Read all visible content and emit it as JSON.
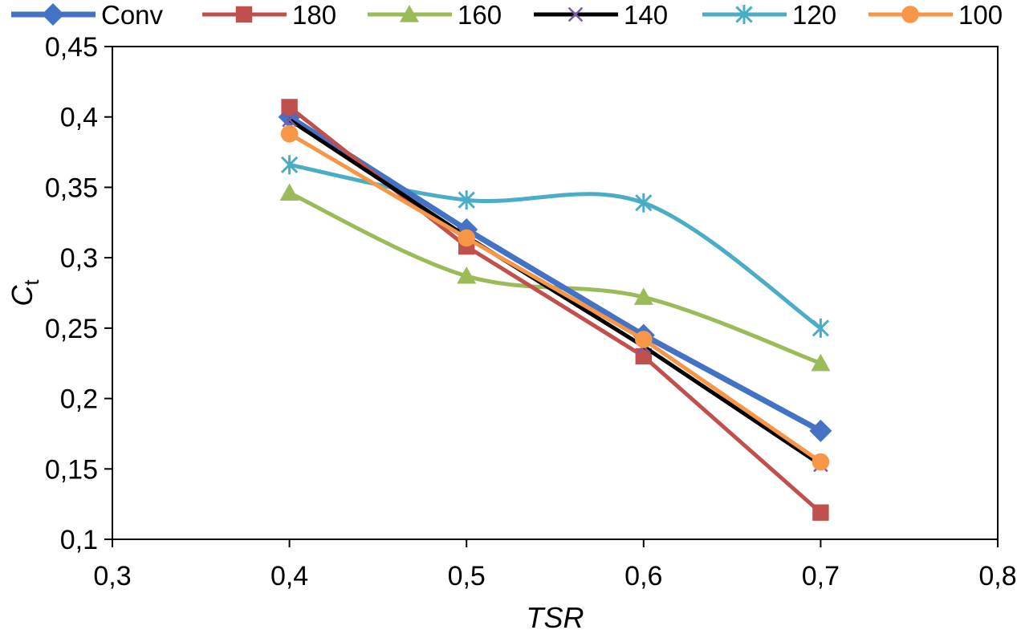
{
  "chart_data": {
    "type": "line",
    "title": "",
    "xlabel": "TSR",
    "ylabel": {
      "main": "C",
      "sub": "t"
    },
    "xlim": [
      0.3,
      0.8
    ],
    "ylim": [
      0.1,
      0.45
    ],
    "xticks": [
      {
        "value": 0.3,
        "label": "0,3"
      },
      {
        "value": 0.4,
        "label": "0,4"
      },
      {
        "value": 0.5,
        "label": "0,5"
      },
      {
        "value": 0.6,
        "label": "0,6"
      },
      {
        "value": 0.7,
        "label": "0,7"
      },
      {
        "value": 0.8,
        "label": "0,8"
      }
    ],
    "yticks": [
      {
        "value": 0.1,
        "label": "0,1"
      },
      {
        "value": 0.15,
        "label": "0,15"
      },
      {
        "value": 0.2,
        "label": "0,2"
      },
      {
        "value": 0.25,
        "label": "0,25"
      },
      {
        "value": 0.3,
        "label": "0,3"
      },
      {
        "value": 0.35,
        "label": "0,35"
      },
      {
        "value": 0.4,
        "label": "0,4"
      },
      {
        "value": 0.45,
        "label": "0,45"
      }
    ],
    "grid": false,
    "legend_position": "top",
    "x": [
      0.4,
      0.5,
      0.6,
      0.7
    ],
    "series": [
      {
        "name": "Conv",
        "color": "#4472C4",
        "marker": "diamond",
        "smooth": false,
        "values": [
          0.4,
          0.32,
          0.245,
          0.177
        ]
      },
      {
        "name": "180",
        "color": "#C0504D",
        "marker": "square",
        "smooth": false,
        "values": [
          0.407,
          0.308,
          0.23,
          0.119
        ]
      },
      {
        "name": "160",
        "color": "#9BBB59",
        "marker": "triangle",
        "smooth": true,
        "values": [
          0.346,
          0.287,
          0.272,
          0.225
        ]
      },
      {
        "name": "140",
        "color": "#000000",
        "marker": "x",
        "smooth": false,
        "values": [
          0.398,
          0.315,
          0.237,
          0.153
        ]
      },
      {
        "name": "120",
        "color": "#4BACC6",
        "marker": "asterisk",
        "smooth": true,
        "values": [
          0.366,
          0.341,
          0.339,
          0.25
        ]
      },
      {
        "name": "100",
        "color": "#F79646",
        "marker": "circle",
        "smooth": false,
        "values": [
          0.388,
          0.314,
          0.242,
          0.155
        ]
      }
    ]
  }
}
